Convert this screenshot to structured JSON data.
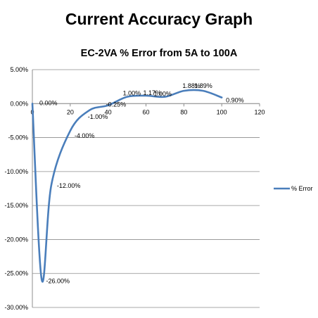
{
  "page": {
    "title": "Current Accuracy Graph"
  },
  "chart_data": {
    "type": "scatter",
    "title": "EC-2VA  % Error from 5A to 100A",
    "xlabel": "",
    "ylabel": "",
    "xlim": [
      0,
      120
    ],
    "ylim": [
      -30,
      5
    ],
    "x_ticks": [
      0,
      20,
      40,
      60,
      80,
      100,
      120
    ],
    "y_ticks": [
      5,
      0,
      -5,
      -10,
      -15,
      -20,
      -25,
      -30
    ],
    "y_tick_labels": [
      "5.00%",
      "0.00%",
      "-5.00%",
      "-10.00%",
      "-15.00%",
      "-20.00%",
      "-25.00%",
      "-30.00%"
    ],
    "grid": "horizontal",
    "legend_position": "right",
    "series": [
      {
        "name": "% Error",
        "color": "#4a7ebb",
        "smooth": true,
        "x": [
          0,
          5,
          10,
          20,
          30,
          40,
          50,
          60,
          70,
          80,
          90,
          100
        ],
        "y": [
          0,
          -26,
          -12,
          -4,
          -1,
          -0.25,
          1,
          1.17,
          1,
          1.88,
          1.89,
          0.9
        ],
        "labels": [
          "0.00%",
          "-26.00%",
          "-12.00%",
          "-4.00%",
          "-1.00%",
          "-0.25%",
          "1.00%",
          "1.17%",
          "1.00%",
          "1.88%",
          "1.89%",
          "0.90%"
        ]
      }
    ]
  }
}
